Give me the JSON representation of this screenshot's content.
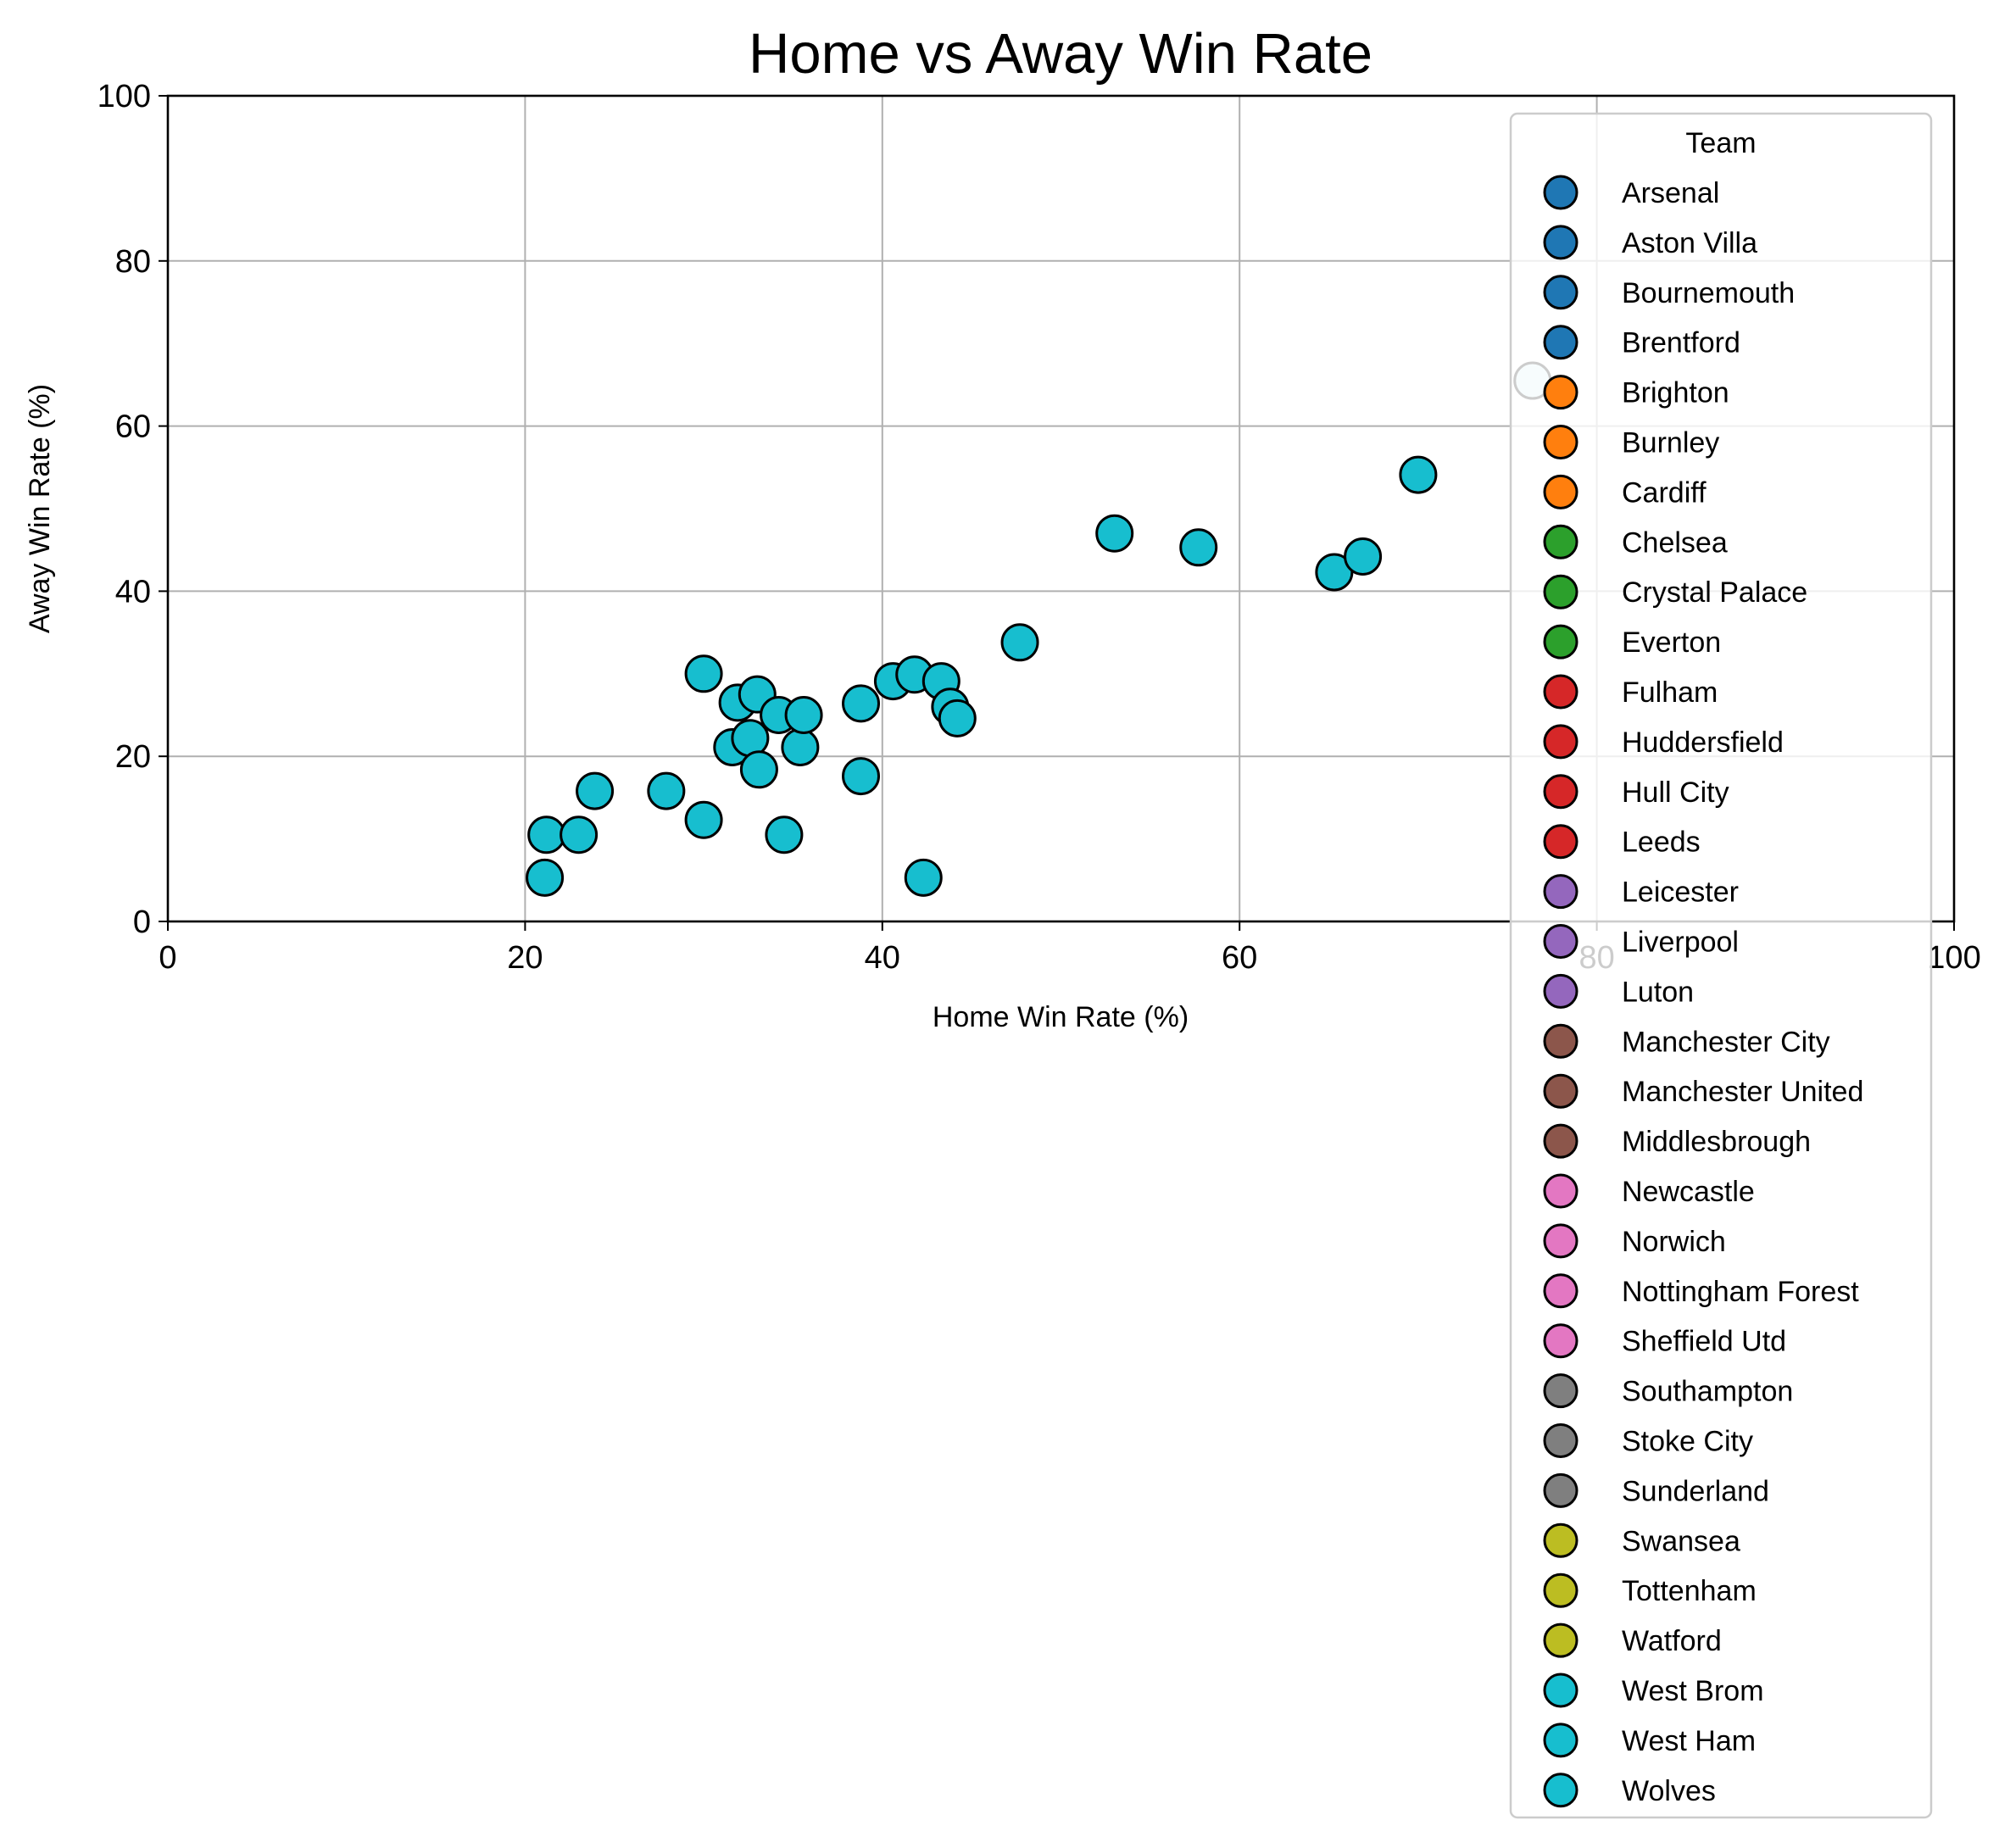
{
  "chart_data": {
    "type": "scatter",
    "title": "Home vs Away Win Rate",
    "xlabel": "Home Win Rate (%)",
    "ylabel": "Away Win Rate (%)",
    "xlim": [
      0,
      100
    ],
    "ylim": [
      0,
      100
    ],
    "xticks": [
      "0",
      "20",
      "40",
      "60",
      "80",
      "100"
    ],
    "yticks": [
      "0",
      "20",
      "40",
      "60",
      "80",
      "100"
    ],
    "grid": true,
    "legend": {
      "title": "Team",
      "placement": "upper right, extending below the plot",
      "entries": [
        {
          "label": "Arsenal",
          "color": "#1f77b4"
        },
        {
          "label": "Aston Villa",
          "color": "#1f77b4"
        },
        {
          "label": "Bournemouth",
          "color": "#1f77b4"
        },
        {
          "label": "Brentford",
          "color": "#1f77b4"
        },
        {
          "label": "Brighton",
          "color": "#ff7f0e"
        },
        {
          "label": "Burnley",
          "color": "#ff7f0e"
        },
        {
          "label": "Cardiff",
          "color": "#ff7f0e"
        },
        {
          "label": "Chelsea",
          "color": "#2ca02c"
        },
        {
          "label": "Crystal Palace",
          "color": "#2ca02c"
        },
        {
          "label": "Everton",
          "color": "#2ca02c"
        },
        {
          "label": "Fulham",
          "color": "#d62728"
        },
        {
          "label": "Huddersfield",
          "color": "#d62728"
        },
        {
          "label": "Hull City",
          "color": "#d62728"
        },
        {
          "label": "Leeds",
          "color": "#d62728"
        },
        {
          "label": "Leicester",
          "color": "#9467bd"
        },
        {
          "label": "Liverpool",
          "color": "#9467bd"
        },
        {
          "label": "Luton",
          "color": "#9467bd"
        },
        {
          "label": "Manchester City",
          "color": "#8c564b"
        },
        {
          "label": "Manchester United",
          "color": "#8c564b"
        },
        {
          "label": "Middlesbrough",
          "color": "#8c564b"
        },
        {
          "label": "Newcastle",
          "color": "#e377c2"
        },
        {
          "label": "Norwich",
          "color": "#e377c2"
        },
        {
          "label": "Nottingham Forest",
          "color": "#e377c2"
        },
        {
          "label": "Sheffield Utd",
          "color": "#e377c2"
        },
        {
          "label": "Southampton",
          "color": "#7f7f7f"
        },
        {
          "label": "Stoke City",
          "color": "#7f7f7f"
        },
        {
          "label": "Sunderland",
          "color": "#7f7f7f"
        },
        {
          "label": "Swansea",
          "color": "#bcbd22"
        },
        {
          "label": "Tottenham",
          "color": "#bcbd22"
        },
        {
          "label": "Watford",
          "color": "#bcbd22"
        },
        {
          "label": "West Brom",
          "color": "#17becf"
        },
        {
          "label": "West Ham",
          "color": "#17becf"
        },
        {
          "label": "Wolves",
          "color": "#17becf"
        }
      ]
    },
    "marker_color": "#17becf",
    "marker_edge_color": "#000000",
    "points": [
      {
        "x": 21.1,
        "y": 5.3
      },
      {
        "x": 21.2,
        "y": 10.5
      },
      {
        "x": 23.0,
        "y": 10.5
      },
      {
        "x": 23.9,
        "y": 15.8
      },
      {
        "x": 27.9,
        "y": 15.8
      },
      {
        "x": 30.0,
        "y": 12.3
      },
      {
        "x": 30.0,
        "y": 30.0
      },
      {
        "x": 31.6,
        "y": 21.1
      },
      {
        "x": 31.9,
        "y": 26.5
      },
      {
        "x": 32.6,
        "y": 22.2
      },
      {
        "x": 33.0,
        "y": 27.5
      },
      {
        "x": 33.1,
        "y": 18.4
      },
      {
        "x": 34.2,
        "y": 25.0
      },
      {
        "x": 34.5,
        "y": 10.5
      },
      {
        "x": 35.4,
        "y": 21.1
      },
      {
        "x": 35.6,
        "y": 25.0
      },
      {
        "x": 38.8,
        "y": 26.4
      },
      {
        "x": 38.8,
        "y": 17.6
      },
      {
        "x": 40.6,
        "y": 29.1
      },
      {
        "x": 41.8,
        "y": 29.9
      },
      {
        "x": 42.3,
        "y": 5.3
      },
      {
        "x": 43.3,
        "y": 29.1
      },
      {
        "x": 43.8,
        "y": 26.0
      },
      {
        "x": 44.2,
        "y": 24.6
      },
      {
        "x": 47.7,
        "y": 33.8
      },
      {
        "x": 53.0,
        "y": 47.0
      },
      {
        "x": 57.7,
        "y": 45.3
      },
      {
        "x": 65.3,
        "y": 42.3
      },
      {
        "x": 66.9,
        "y": 44.2
      },
      {
        "x": 70.0,
        "y": 54.1
      },
      {
        "x": 76.4,
        "y": 65.5,
        "color": "#d8f1f4"
      }
    ]
  }
}
